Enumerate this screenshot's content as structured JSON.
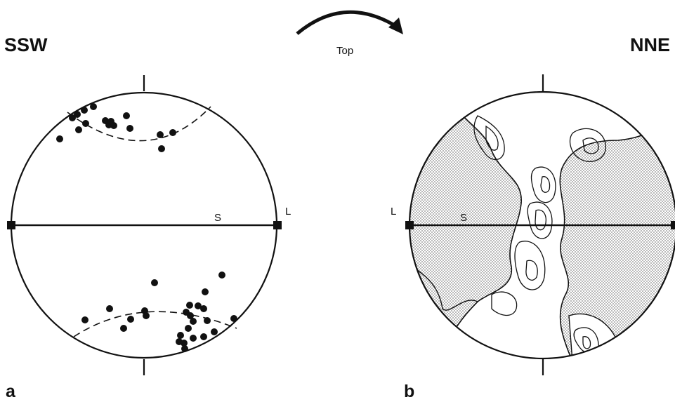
{
  "labels": {
    "left_direction": "SSW",
    "right_direction": "NNE",
    "rotation": "Top",
    "panel_a": "a",
    "panel_b": "b",
    "a_plane": "S",
    "a_lineation": "L",
    "b_plane": "S",
    "b_lineation": "L"
  },
  "colors": {
    "ink": "#111111",
    "stipple": "#c9c9c9",
    "background": "#ffffff"
  }
}
